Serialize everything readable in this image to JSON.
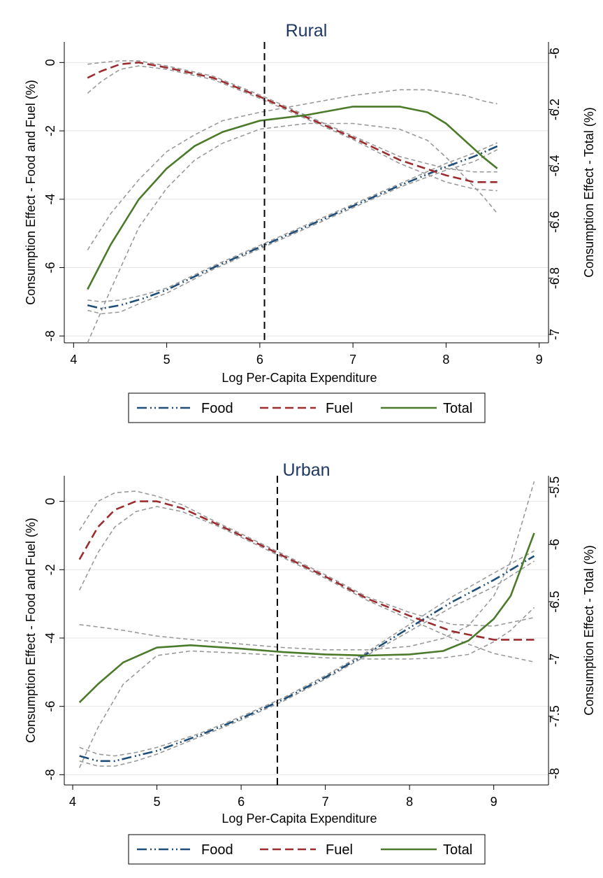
{
  "colors": {
    "food": "#1f4e79",
    "fuel": "#9b2d30",
    "total": "#4a7a2a",
    "ci": "#9a9a9a",
    "title": "#1f3864",
    "grid": "#e6e6e6"
  },
  "chart_data": [
    {
      "type": "line",
      "title": "Rural",
      "xlabel": "Log Per-Capita Expenditure",
      "ylabel_left": "Consumption Effect - Food and Fuel (%)",
      "ylabel_right": "Consumption Effect - Total (%)",
      "xlim": [
        3.9,
        9.1
      ],
      "ylim_left": [
        -8.2,
        0.6
      ],
      "ylim_right": [
        -7.03,
        -5.96
      ],
      "x_ticks": [
        4,
        5,
        6,
        7,
        8,
        9
      ],
      "y_left_ticks": [
        0,
        -2,
        -4,
        -6,
        -8
      ],
      "y_right_ticks": [
        -6,
        -6.2,
        -6.4,
        -6.6,
        -6.8,
        -7
      ],
      "x_tick_labels": [
        "4",
        "5",
        "6",
        "7",
        "8",
        "9"
      ],
      "y_left_tick_labels": [
        "0",
        "-2",
        "-4",
        "-6",
        "-8"
      ],
      "y_right_tick_labels": [
        "-6",
        "-6.2",
        "-6.4",
        "-6.6",
        "-6.8",
        "-7"
      ],
      "vline_x": 6.05,
      "grid": true,
      "legend": {
        "position": "bottom",
        "entries": [
          "Food",
          "Fuel",
          "Total"
        ]
      },
      "series": [
        {
          "name": "Food",
          "axis": "left",
          "style": "dashdot",
          "x": [
            4.15,
            4.3,
            4.5,
            4.75,
            5.0,
            5.5,
            6.0,
            6.5,
            7.0,
            7.5,
            8.0,
            8.3,
            8.55
          ],
          "y": [
            -7.1,
            -7.2,
            -7.1,
            -6.9,
            -6.65,
            -6.0,
            -5.4,
            -4.8,
            -4.2,
            -3.6,
            -3.05,
            -2.75,
            -2.45
          ]
        },
        {
          "name": "Fuel",
          "axis": "left",
          "style": "dashed",
          "x": [
            4.15,
            4.3,
            4.5,
            4.7,
            5.0,
            5.5,
            6.0,
            6.5,
            7.0,
            7.5,
            8.0,
            8.3,
            8.55
          ],
          "y": [
            -0.45,
            -0.25,
            -0.05,
            0.0,
            -0.15,
            -0.45,
            -1.0,
            -1.6,
            -2.2,
            -2.85,
            -3.3,
            -3.5,
            -3.5
          ]
        },
        {
          "name": "Total",
          "axis": "right",
          "style": "solid",
          "x": [
            4.15,
            4.4,
            4.7,
            5.0,
            5.3,
            5.6,
            6.0,
            6.5,
            7.0,
            7.5,
            7.8,
            8.0,
            8.2,
            8.4,
            8.55
          ],
          "y": [
            -6.84,
            -6.68,
            -6.52,
            -6.41,
            -6.33,
            -6.28,
            -6.24,
            -6.22,
            -6.19,
            -6.19,
            -6.21,
            -6.25,
            -6.31,
            -6.37,
            -6.41
          ]
        }
      ],
      "ci_bands": [
        {
          "series": "Food",
          "axis": "left",
          "x": [
            4.15,
            4.3,
            4.5,
            4.75,
            5.0,
            5.5,
            6.0,
            6.5,
            7.0,
            7.5,
            8.0,
            8.3,
            8.55
          ],
          "upper": [
            -6.95,
            -7.0,
            -6.95,
            -6.8,
            -6.6,
            -5.95,
            -5.35,
            -4.75,
            -4.15,
            -3.55,
            -2.95,
            -2.65,
            -2.35
          ],
          "lower": [
            -7.25,
            -7.35,
            -7.3,
            -7.0,
            -6.75,
            -6.05,
            -5.45,
            -4.85,
            -4.25,
            -3.65,
            -3.15,
            -2.9,
            -2.55
          ]
        },
        {
          "series": "Fuel",
          "axis": "left",
          "x": [
            4.15,
            4.3,
            4.5,
            4.7,
            5.0,
            5.5,
            6.0,
            6.5,
            7.0,
            7.5,
            8.0,
            8.3,
            8.55
          ],
          "upper": [
            -0.05,
            0.0,
            0.05,
            0.05,
            -0.1,
            -0.4,
            -0.95,
            -1.55,
            -2.15,
            -2.75,
            -3.1,
            -3.2,
            -3.2
          ],
          "lower": [
            -0.9,
            -0.55,
            -0.2,
            -0.1,
            -0.2,
            -0.5,
            -1.05,
            -1.65,
            -2.25,
            -2.95,
            -3.5,
            -3.7,
            -3.75
          ]
        },
        {
          "series": "Total",
          "axis": "right",
          "x": [
            4.15,
            4.4,
            4.7,
            5.0,
            5.3,
            5.6,
            6.0,
            6.5,
            7.0,
            7.5,
            7.8,
            8.0,
            8.2,
            8.4,
            8.55
          ],
          "upper": [
            -6.7,
            -6.57,
            -6.45,
            -6.35,
            -6.29,
            -6.24,
            -6.21,
            -6.18,
            -6.15,
            -6.13,
            -6.13,
            -6.14,
            -6.15,
            -6.17,
            -6.18
          ],
          "lower": [
            -7.03,
            -6.84,
            -6.62,
            -6.48,
            -6.38,
            -6.32,
            -6.27,
            -6.25,
            -6.25,
            -6.27,
            -6.31,
            -6.37,
            -6.44,
            -6.51,
            -6.57
          ]
        }
      ]
    },
    {
      "type": "line",
      "title": "Urban",
      "xlabel": "Log Per-Capita Expenditure",
      "ylabel_left": "Consumption Effect - Food and Fuel (%)",
      "ylabel_right": "Consumption Effect - Total (%)",
      "xlim": [
        3.9,
        9.65
      ],
      "ylim_left": [
        -8.3,
        0.75
      ],
      "ylim_right": [
        -8.1,
        -5.4
      ],
      "x_ticks": [
        4,
        5,
        6,
        7,
        8,
        9
      ],
      "y_left_ticks": [
        0,
        -2,
        -4,
        -6,
        -8
      ],
      "y_right_ticks": [
        -5.5,
        -6,
        -6.5,
        -7,
        -7.5,
        -8
      ],
      "x_tick_labels": [
        "4",
        "5",
        "6",
        "7",
        "8",
        "9"
      ],
      "y_left_tick_labels": [
        "0",
        "-2",
        "-4",
        "-6",
        "-8"
      ],
      "y_right_tick_labels": [
        "-5.5",
        "-6",
        "-6.5",
        "-7",
        "-7.5",
        "-8"
      ],
      "vline_x": 6.43,
      "grid": true,
      "legend": {
        "position": "bottom",
        "entries": [
          "Food",
          "Fuel",
          "Total"
        ]
      },
      "series": [
        {
          "name": "Food",
          "axis": "left",
          "style": "dashdot",
          "x": [
            4.08,
            4.3,
            4.5,
            4.75,
            5.0,
            5.5,
            6.0,
            6.5,
            7.0,
            7.5,
            8.0,
            8.5,
            9.0,
            9.48
          ],
          "y": [
            -7.45,
            -7.6,
            -7.6,
            -7.45,
            -7.3,
            -6.85,
            -6.35,
            -5.8,
            -5.15,
            -4.45,
            -3.7,
            -2.95,
            -2.3,
            -1.6
          ]
        },
        {
          "name": "Fuel",
          "axis": "left",
          "style": "dashed",
          "x": [
            4.08,
            4.3,
            4.5,
            4.75,
            5.0,
            5.3,
            5.7,
            6.0,
            6.5,
            7.0,
            7.5,
            8.0,
            8.5,
            9.0,
            9.48
          ],
          "y": [
            -1.7,
            -0.75,
            -0.25,
            0.0,
            0.0,
            -0.2,
            -0.65,
            -1.0,
            -1.6,
            -2.2,
            -2.85,
            -3.35,
            -3.8,
            -4.05,
            -4.05
          ]
        },
        {
          "name": "Total",
          "axis": "right",
          "style": "solid",
          "x": [
            4.08,
            4.3,
            4.6,
            5.0,
            5.4,
            6.0,
            6.5,
            7.0,
            7.5,
            8.0,
            8.4,
            8.7,
            9.0,
            9.2,
            9.48
          ],
          "y": [
            -7.38,
            -7.22,
            -7.03,
            -6.9,
            -6.88,
            -6.91,
            -6.94,
            -6.96,
            -6.97,
            -6.96,
            -6.93,
            -6.84,
            -6.65,
            -6.45,
            -5.9
          ]
        }
      ],
      "ci_bands": [
        {
          "series": "Food",
          "axis": "left",
          "x": [
            4.08,
            4.3,
            4.5,
            4.75,
            5.0,
            5.5,
            6.0,
            6.5,
            7.0,
            7.5,
            8.0,
            8.5,
            9.0,
            9.48
          ],
          "upper": [
            -7.2,
            -7.4,
            -7.45,
            -7.35,
            -7.2,
            -6.8,
            -6.3,
            -5.75,
            -5.1,
            -4.4,
            -3.6,
            -2.8,
            -2.1,
            -1.45
          ],
          "lower": [
            -7.6,
            -7.75,
            -7.75,
            -7.6,
            -7.4,
            -6.9,
            -6.4,
            -5.85,
            -5.2,
            -4.5,
            -3.8,
            -3.1,
            -2.5,
            -1.75
          ]
        },
        {
          "series": "Fuel",
          "axis": "left",
          "x": [
            4.08,
            4.3,
            4.5,
            4.75,
            5.0,
            5.3,
            5.7,
            6.0,
            6.5,
            7.0,
            7.5,
            8.0,
            8.5,
            9.0,
            9.48
          ],
          "upper": [
            -0.85,
            0.0,
            0.25,
            0.3,
            0.15,
            -0.1,
            -0.6,
            -0.95,
            -1.55,
            -2.15,
            -2.8,
            -3.25,
            -3.6,
            -3.65,
            -3.4
          ],
          "lower": [
            -2.6,
            -1.5,
            -0.75,
            -0.3,
            -0.15,
            -0.3,
            -0.7,
            -1.05,
            -1.65,
            -2.25,
            -2.9,
            -3.45,
            -4.0,
            -4.45,
            -4.7
          ]
        },
        {
          "series": "Total",
          "axis": "right",
          "x": [
            4.08,
            4.3,
            4.6,
            5.0,
            5.4,
            6.0,
            6.5,
            7.0,
            7.5,
            8.0,
            8.4,
            8.7,
            9.0,
            9.2,
            9.48
          ],
          "upper": [
            -6.7,
            -6.72,
            -6.75,
            -6.8,
            -6.83,
            -6.87,
            -6.9,
            -6.92,
            -6.92,
            -6.89,
            -6.82,
            -6.71,
            -6.45,
            -6.15,
            -5.45
          ],
          "lower": [
            -7.95,
            -7.6,
            -7.22,
            -6.97,
            -6.93,
            -6.95,
            -6.97,
            -6.99,
            -7.0,
            -7.0,
            -6.99,
            -6.96,
            -6.85,
            -6.75,
            -6.55
          ]
        }
      ]
    }
  ]
}
